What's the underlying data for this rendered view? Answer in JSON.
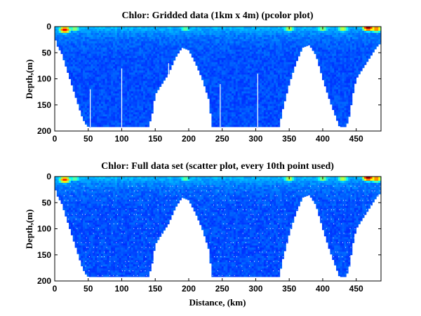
{
  "colormap": "jet",
  "chart_data": [
    {
      "type": "heatmap",
      "title": "Chlor: Gridded data (1km x 4m) (pcolor plot)",
      "xlabel": "",
      "ylabel": "Depth,(m)",
      "xlim": [
        0,
        487
      ],
      "ylim": [
        0,
        200
      ],
      "y_reversed": true,
      "xticks": [
        "0",
        "50",
        "100",
        "150",
        "200",
        "250",
        "300",
        "350",
        "400",
        "450"
      ],
      "yticks": [
        "0",
        "50",
        "100",
        "150",
        "200"
      ],
      "gridded": true,
      "bottom_depth_profile": {
        "distance_km": [
          0,
          5,
          10,
          15,
          20,
          25,
          30,
          35,
          40,
          45,
          50,
          140,
          145,
          150,
          160,
          170,
          180,
          190,
          200,
          210,
          220,
          230,
          235,
          335,
          340,
          350,
          360,
          370,
          380,
          390,
          400,
          410,
          420,
          425,
          435,
          440,
          445,
          450,
          460,
          470,
          480,
          487
        ],
        "max_depth_m": [
          20,
          40,
          50,
          70,
          90,
          110,
          130,
          150,
          170,
          185,
          192,
          192,
          170,
          130,
          110,
          90,
          60,
          40,
          45,
          70,
          100,
          140,
          192,
          192,
          160,
          110,
          70,
          40,
          35,
          55,
          100,
          140,
          175,
          192,
          192,
          170,
          130,
          100,
          80,
          60,
          40,
          30
        ]
      },
      "surface_hotspots": [
        {
          "distance_km": 15,
          "depth_m": 6,
          "value": 0.9
        },
        {
          "distance_km": 30,
          "depth_m": 4,
          "value": 0.55
        },
        {
          "distance_km": 195,
          "depth_m": 4,
          "value": 0.5
        },
        {
          "distance_km": 350,
          "depth_m": 4,
          "value": 0.6
        },
        {
          "distance_km": 400,
          "depth_m": 4,
          "value": 0.55
        },
        {
          "distance_km": 430,
          "depth_m": 4,
          "value": 0.6
        },
        {
          "distance_km": 468,
          "depth_m": 2,
          "value": 1.0
        },
        {
          "distance_km": 480,
          "depth_m": 4,
          "value": 0.8
        }
      ]
    },
    {
      "type": "scatter",
      "title": "Chlor: Full data set (scatter plot, every 10th point used)",
      "xlabel": "Distance, (km)",
      "ylabel": "Depth,(m)",
      "xlim": [
        0,
        487
      ],
      "ylim": [
        0,
        200
      ],
      "y_reversed": true,
      "xticks": [
        "0",
        "50",
        "100",
        "150",
        "200",
        "250",
        "300",
        "350",
        "400",
        "450"
      ],
      "yticks": [
        "0",
        "50",
        "100",
        "150",
        "200"
      ],
      "gridded": false,
      "bottom_depth_profile": {
        "distance_km": [
          0,
          5,
          10,
          15,
          20,
          25,
          30,
          35,
          40,
          45,
          50,
          140,
          145,
          150,
          160,
          170,
          180,
          190,
          200,
          210,
          220,
          230,
          235,
          335,
          340,
          350,
          360,
          370,
          380,
          390,
          400,
          410,
          420,
          425,
          435,
          440,
          445,
          450,
          460,
          470,
          480,
          487
        ],
        "max_depth_m": [
          20,
          40,
          50,
          70,
          90,
          110,
          130,
          150,
          170,
          185,
          192,
          192,
          170,
          130,
          110,
          90,
          60,
          40,
          45,
          70,
          100,
          140,
          192,
          192,
          160,
          110,
          70,
          40,
          35,
          55,
          100,
          140,
          175,
          192,
          192,
          170,
          130,
          100,
          80,
          60,
          40,
          30
        ]
      },
      "surface_hotspots": [
        {
          "distance_km": 15,
          "depth_m": 6,
          "value": 0.85
        },
        {
          "distance_km": 30,
          "depth_m": 4,
          "value": 0.5
        },
        {
          "distance_km": 195,
          "depth_m": 4,
          "value": 0.5
        },
        {
          "distance_km": 350,
          "depth_m": 4,
          "value": 0.6
        },
        {
          "distance_km": 400,
          "depth_m": 4,
          "value": 0.55
        },
        {
          "distance_km": 430,
          "depth_m": 4,
          "value": 0.6
        },
        {
          "distance_km": 468,
          "depth_m": 2,
          "value": 1.0
        },
        {
          "distance_km": 480,
          "depth_m": 4,
          "value": 0.8
        }
      ]
    }
  ]
}
